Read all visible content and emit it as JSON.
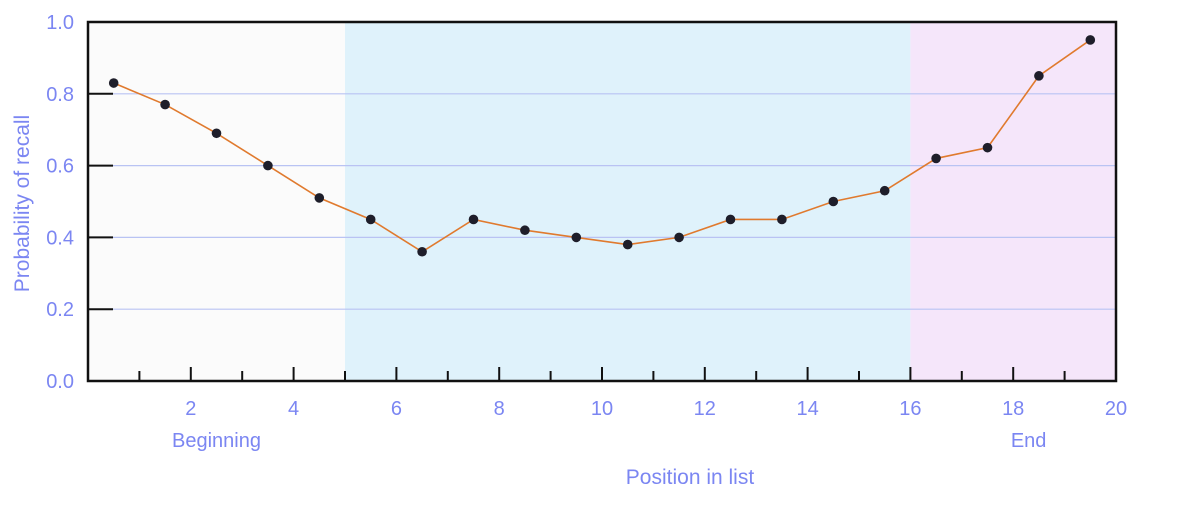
{
  "chart_data": {
    "type": "line",
    "title": "",
    "xlabel": "Position in list",
    "ylabel": "Probability of recall",
    "xlim": [
      0,
      20
    ],
    "ylim": [
      0,
      1.0
    ],
    "x_ticks": [
      2,
      4,
      6,
      8,
      10,
      12,
      14,
      16,
      18,
      20
    ],
    "x_tick_labels": [
      "2",
      "4",
      "6",
      "8",
      "10",
      "12",
      "14",
      "16",
      "18",
      "20"
    ],
    "y_ticks": [
      0,
      0.2,
      0.4,
      0.6,
      0.8,
      1.0
    ],
    "y_tick_labels": [
      "0.0",
      "0.2",
      "0.4",
      "0.6",
      "0.8",
      "1.0"
    ],
    "grid": "horizontal",
    "regions": [
      {
        "label": "Beginning",
        "x_start": 0,
        "x_end": 5,
        "color": "#fbfbfb"
      },
      {
        "label": "",
        "x_start": 5,
        "x_end": 16,
        "color": "#dff2fb"
      },
      {
        "label": "End",
        "x_start": 16,
        "x_end": 20,
        "color": "#f5e6fa"
      }
    ],
    "series": [
      {
        "x": [
          0.5,
          1.5,
          2.5,
          3.5,
          4.5,
          5.5,
          6.5,
          7.5,
          8.5,
          9.5,
          10.5,
          11.5,
          12.5,
          13.5,
          14.5,
          15.5,
          16.5,
          17.5,
          18.5,
          19.5
        ],
        "values": [
          0.83,
          0.77,
          0.69,
          0.6,
          0.51,
          0.45,
          0.36,
          0.45,
          0.42,
          0.4,
          0.38,
          0.4,
          0.45,
          0.45,
          0.5,
          0.53,
          0.62,
          0.65,
          0.85,
          0.95
        ]
      }
    ],
    "colors": {
      "line": "#e07a2e",
      "marker": "#1e1e2a",
      "text": "#7b86f2",
      "grid": "#b9c3f3",
      "axis": "#111111"
    }
  }
}
